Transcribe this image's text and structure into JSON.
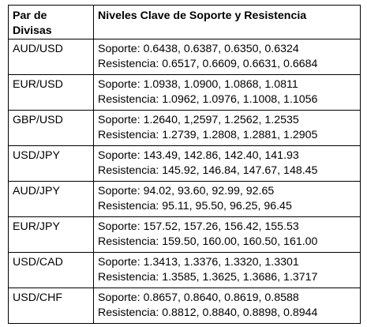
{
  "header": {
    "col1": "Par de Divisas",
    "col1_line1": "Par de",
    "col1_line2": "Divisas",
    "col2": "Niveles Clave de Soporte y Resistencia"
  },
  "rows": [
    {
      "pair": "AUD/USD",
      "support": "Soporte: 0.6438, 0.6387, 0.6350, 0.6324",
      "resistance": "Resistencia: 0.6517, 0.6609, 0.6631, 0.6684"
    },
    {
      "pair": "EUR/USD",
      "support": "Soporte: 1.0938, 1.0900, 1.0868, 1.0811",
      "resistance": "Resistencia: 1.0962, 1.0976, 1.1008, 1.1056"
    },
    {
      "pair": "GBP/USD",
      "support": "Soporte: 1.2640, 1,2597, 1.2562, 1.2535",
      "resistance": "Resistencia: 1.2739, 1.2808, 1.2881, 1.2905"
    },
    {
      "pair": "USD/JPY",
      "support": "Soporte: 143.49, 142.86, 142.40, 141.93",
      "resistance": "Resistencia: 145.92, 146.84, 147.67, 148.45"
    },
    {
      "pair": "AUD/JPY",
      "support": "Soporte: 94.02, 93.60, 92.99, 92.65",
      "resistance": "Resistencia: 95.11, 95.50, 96.25, 96.45"
    },
    {
      "pair": "EUR/JPY",
      "support": "Soporte: 157.52, 157.26, 156.42, 155.53",
      "resistance": "Resistencia: 159.50, 160.00, 160.50, 161.00"
    },
    {
      "pair": "USD/CAD",
      "support": "Soporte: 1.3413, 1.3376, 1.3320, 1.3301",
      "resistance": "Resistencia: 1.3585, 1.3625, 1.3686, 1.3717"
    },
    {
      "pair": "USD/CHF",
      "support": "Soporte: 0.8657, 0.8640, 0.8619, 0.8588",
      "resistance": "Resistencia: 0.8812, 0.8840, 0.8898, 0.8944"
    }
  ]
}
